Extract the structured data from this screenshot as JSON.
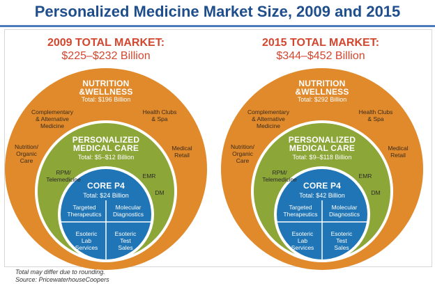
{
  "title": "Personalized Medicine Market Size, 2009 and 2015",
  "colors": {
    "title": "#1f4e8c",
    "heading": "#d3462e",
    "nutrition_ring": "#e08a2c",
    "personalized_ring": "#8da638",
    "core": "#1f75b5"
  },
  "panels": [
    {
      "heading": "2009 TOTAL MARKET:",
      "range": "$225–$232 Billion",
      "outer": {
        "title_line1": "NUTRITION",
        "title_line2": "&WELLNESS",
        "total": "Total: $196 Billion"
      },
      "outer_labels": {
        "complementary": "Complementary\n& Alternative\nMedicine",
        "health_clubs": "Health Clubs\n& Spa",
        "nutrition_organic": "Nutrition/\nOrganic\nCare",
        "medical_retail": "Medical\nRetail"
      },
      "middle": {
        "title_line1": "PERSONALIZED",
        "title_line2": "MEDICAL CARE",
        "total": "Total: $5–$12 Billion"
      },
      "middle_labels": {
        "rpm": "RPM/\nTelemedicine",
        "emr": "EMR",
        "dm": "DM"
      },
      "core": {
        "title": "CORE P4",
        "total": "Total: $24 Billion"
      },
      "core_quadrants": {
        "targeted": "Targeted\nTherapeutics",
        "molecular": "Molecular\nDiagnostics",
        "esoteric_lab": "Esoteric\nLab\nServices",
        "esoteric_test": "Esoteric\nTest\nSales"
      }
    },
    {
      "heading": "2015 TOTAL MARKET:",
      "range": "$344–$452 Billion",
      "outer": {
        "title_line1": "NUTRITION",
        "title_line2": "&WELLNESS",
        "total": "Total: $292 Billion"
      },
      "outer_labels": {
        "complementary": "Complementary\n& Alternative\nMedicine",
        "health_clubs": "Health Clubs\n& Spa",
        "nutrition_organic": "Nutrition/\nOrganic\nCare",
        "medical_retail": "Medical\nRetail"
      },
      "middle": {
        "title_line1": "PERSONALIZED",
        "title_line2": "MEDICAL CARE",
        "total": "Total: $9–$118 Billion"
      },
      "middle_labels": {
        "rpm": "RPM/\nTelemedicine",
        "emr": "EMR",
        "dm": "DM"
      },
      "core": {
        "title": "CORE P4",
        "total": "Total: $42 Billion"
      },
      "core_quadrants": {
        "targeted": "Targeted\nTherapeutics",
        "molecular": "Molecular\nDiagnostics",
        "esoteric_lab": "Esoteric\nLab\nServices",
        "esoteric_test": "Esoteric\nTest\nSales"
      }
    }
  ],
  "footer": {
    "note": "Total may differ due to rounding.",
    "source": "Source: PricewaterhouseCoopers"
  }
}
